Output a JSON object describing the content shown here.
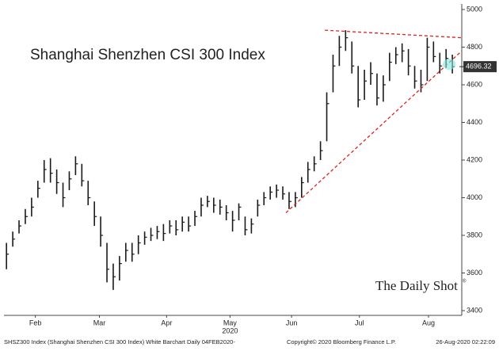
{
  "chart_data": {
    "type": "hlc",
    "title": "Shanghai Shenzhen CSI 300 Index",
    "high": [
      3760,
      3820,
      3880,
      3940,
      4000,
      4090,
      4200,
      4210,
      4150,
      4080,
      4140,
      4220,
      4180,
      4090,
      3980,
      3900,
      3760,
      3650,
      3690,
      3760,
      3760,
      3800,
      3820,
      3840,
      3850,
      3860,
      3880,
      3880,
      3900,
      3900,
      3930,
      4000,
      4010,
      4000,
      3990,
      3960,
      3930,
      3970,
      3900,
      3890,
      3990,
      4030,
      4060,
      4070,
      4060,
      4030,
      4030,
      4110,
      4190,
      4220,
      4300,
      4560,
      4760,
      4860,
      4890,
      4830,
      4700,
      4680,
      4720,
      4660,
      4650,
      4770,
      4800,
      4820,
      4790,
      4700,
      4680,
      4850,
      4830,
      4770,
      4790,
      4760
    ],
    "low": [
      3620,
      3740,
      3810,
      3860,
      3900,
      4000,
      4080,
      4080,
      4020,
      3950,
      4040,
      4120,
      4060,
      3960,
      3850,
      3740,
      3550,
      3510,
      3560,
      3660,
      3660,
      3700,
      3750,
      3770,
      3780,
      3770,
      3810,
      3800,
      3820,
      3820,
      3850,
      3900,
      3950,
      3920,
      3910,
      3880,
      3820,
      3880,
      3800,
      3810,
      3900,
      3960,
      3990,
      4000,
      3990,
      3940,
      3950,
      4000,
      4080,
      4140,
      4200,
      4300,
      4560,
      4700,
      4780,
      4660,
      4480,
      4520,
      4600,
      4490,
      4510,
      4620,
      4710,
      4720,
      4650,
      4580,
      4560,
      4620,
      4720,
      4660,
      4690,
      4660
    ],
    "close": [
      3700,
      3780,
      3850,
      3900,
      3950,
      4050,
      4150,
      4130,
      4080,
      4000,
      4100,
      4180,
      4090,
      4000,
      3900,
      3800,
      3620,
      3580,
      3650,
      3720,
      3700,
      3760,
      3790,
      3800,
      3820,
      3810,
      3850,
      3830,
      3870,
      3850,
      3900,
      3960,
      3980,
      3960,
      3950,
      3920,
      3880,
      3950,
      3830,
      3860,
      3960,
      4000,
      4030,
      4040,
      4020,
      3980,
      4000,
      4080,
      4150,
      4180,
      4250,
      4500,
      4700,
      4800,
      4850,
      4700,
      4520,
      4620,
      4660,
      4530,
      4600,
      4720,
      4760,
      4780,
      4700,
      4620,
      4600,
      4800,
      4750,
      4700,
      4740,
      4696.32
    ],
    "color": "#1a1a1a",
    "xlim": [
      -0.4,
      72.5
    ],
    "xticks": [
      {
        "value": 4.6,
        "label": "Feb"
      },
      {
        "value": 14.8,
        "label": "Mar"
      },
      {
        "value": 25.5,
        "label": "Apr"
      },
      {
        "value": 35.6,
        "label": "May"
      },
      {
        "value": 45.4,
        "label": "Jun"
      },
      {
        "value": 56.2,
        "label": "Jul"
      },
      {
        "value": 67.2,
        "label": "Aug"
      }
    ],
    "year_label": "2020",
    "ylim": [
      3400,
      5000
    ],
    "yticks": [
      3400,
      3600,
      3800,
      4000,
      4200,
      4400,
      4600,
      4800,
      5000
    ],
    "trendlines": {
      "color": "#e02020",
      "lines": [
        {
          "x": [
            44.5,
            72.5
          ],
          "y": [
            3920,
            4780
          ]
        },
        {
          "x": [
            50.7,
            72.5
          ],
          "y": [
            4890,
            4850
          ]
        }
      ]
    },
    "watermark": "The Daily Shot",
    "footer": [
      "SHSZ300 Index (Shanghai Shenzhen CSI 300 Index) White Barchart  Daily 04FEB2020-",
      "Copyright© 2020 Bloomberg Finance L.P.",
      "26-Aug-2020 02:22:09"
    ]
  }
}
